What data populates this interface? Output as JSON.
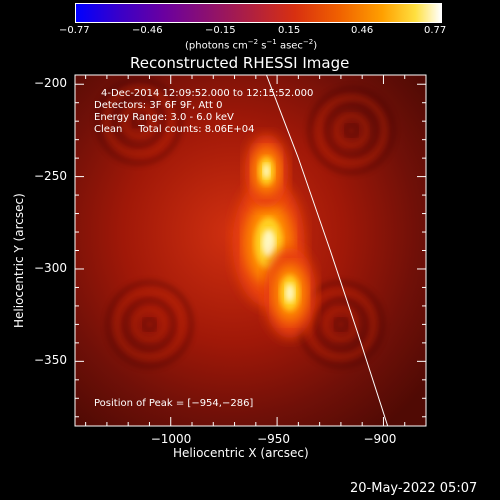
{
  "colorbar": {
    "ticks": [
      "−0.77",
      "−0.46",
      "−0.15",
      "0.15",
      "0.46",
      "0.77"
    ],
    "unit_prefix": "(photons cm",
    "unit_exp1": "−2",
    "unit_mid": " s",
    "unit_exp2": "−1",
    "unit_mid2": " asec",
    "unit_exp3": "−2",
    "unit_suffix": ")"
  },
  "chart_data": {
    "type": "heatmap",
    "title": "Reconstructed RHESSI Image",
    "xlabel": "Heliocentric X (arcsec)",
    "ylabel": "Heliocentric Y (arcsec)",
    "xlim": [
      -1045,
      -880
    ],
    "ylim": [
      -385,
      -195
    ],
    "x_ticks": [
      "−1000",
      "−950",
      "−900"
    ],
    "x_tick_values": [
      -1000,
      -950,
      -900
    ],
    "y_ticks": [
      "−200",
      "−250",
      "−300",
      "−350"
    ],
    "y_tick_values": [
      -200,
      -250,
      -300,
      -350
    ],
    "color_range": [
      -0.77,
      0.77
    ],
    "sources": [
      {
        "x": -954,
        "y": -286,
        "peak": 1.0
      },
      {
        "x": -944,
        "y": -313,
        "peak": 0.62
      },
      {
        "x": -955,
        "y": -247,
        "peak": 0.45
      }
    ],
    "limb_line": [
      [
        -955,
        -195
      ],
      [
        -940,
        -240
      ],
      [
        -925,
        -290
      ],
      [
        -912,
        -335
      ],
      [
        -898,
        -385
      ]
    ],
    "annotations": {
      "line1": "4-Dec-2014 12:09:52.000 to 12:15:52.000",
      "line2": "Detectors: 3F 6F 9F, Att 0",
      "line3": "Energy Range: 3.0 - 6.0 keV",
      "line4": "Clean     Total counts: 8.06E+04",
      "peak": "Position of Peak = [−954,−286]"
    }
  },
  "footer": {
    "timestamp": "20-May-2022 05:07"
  }
}
